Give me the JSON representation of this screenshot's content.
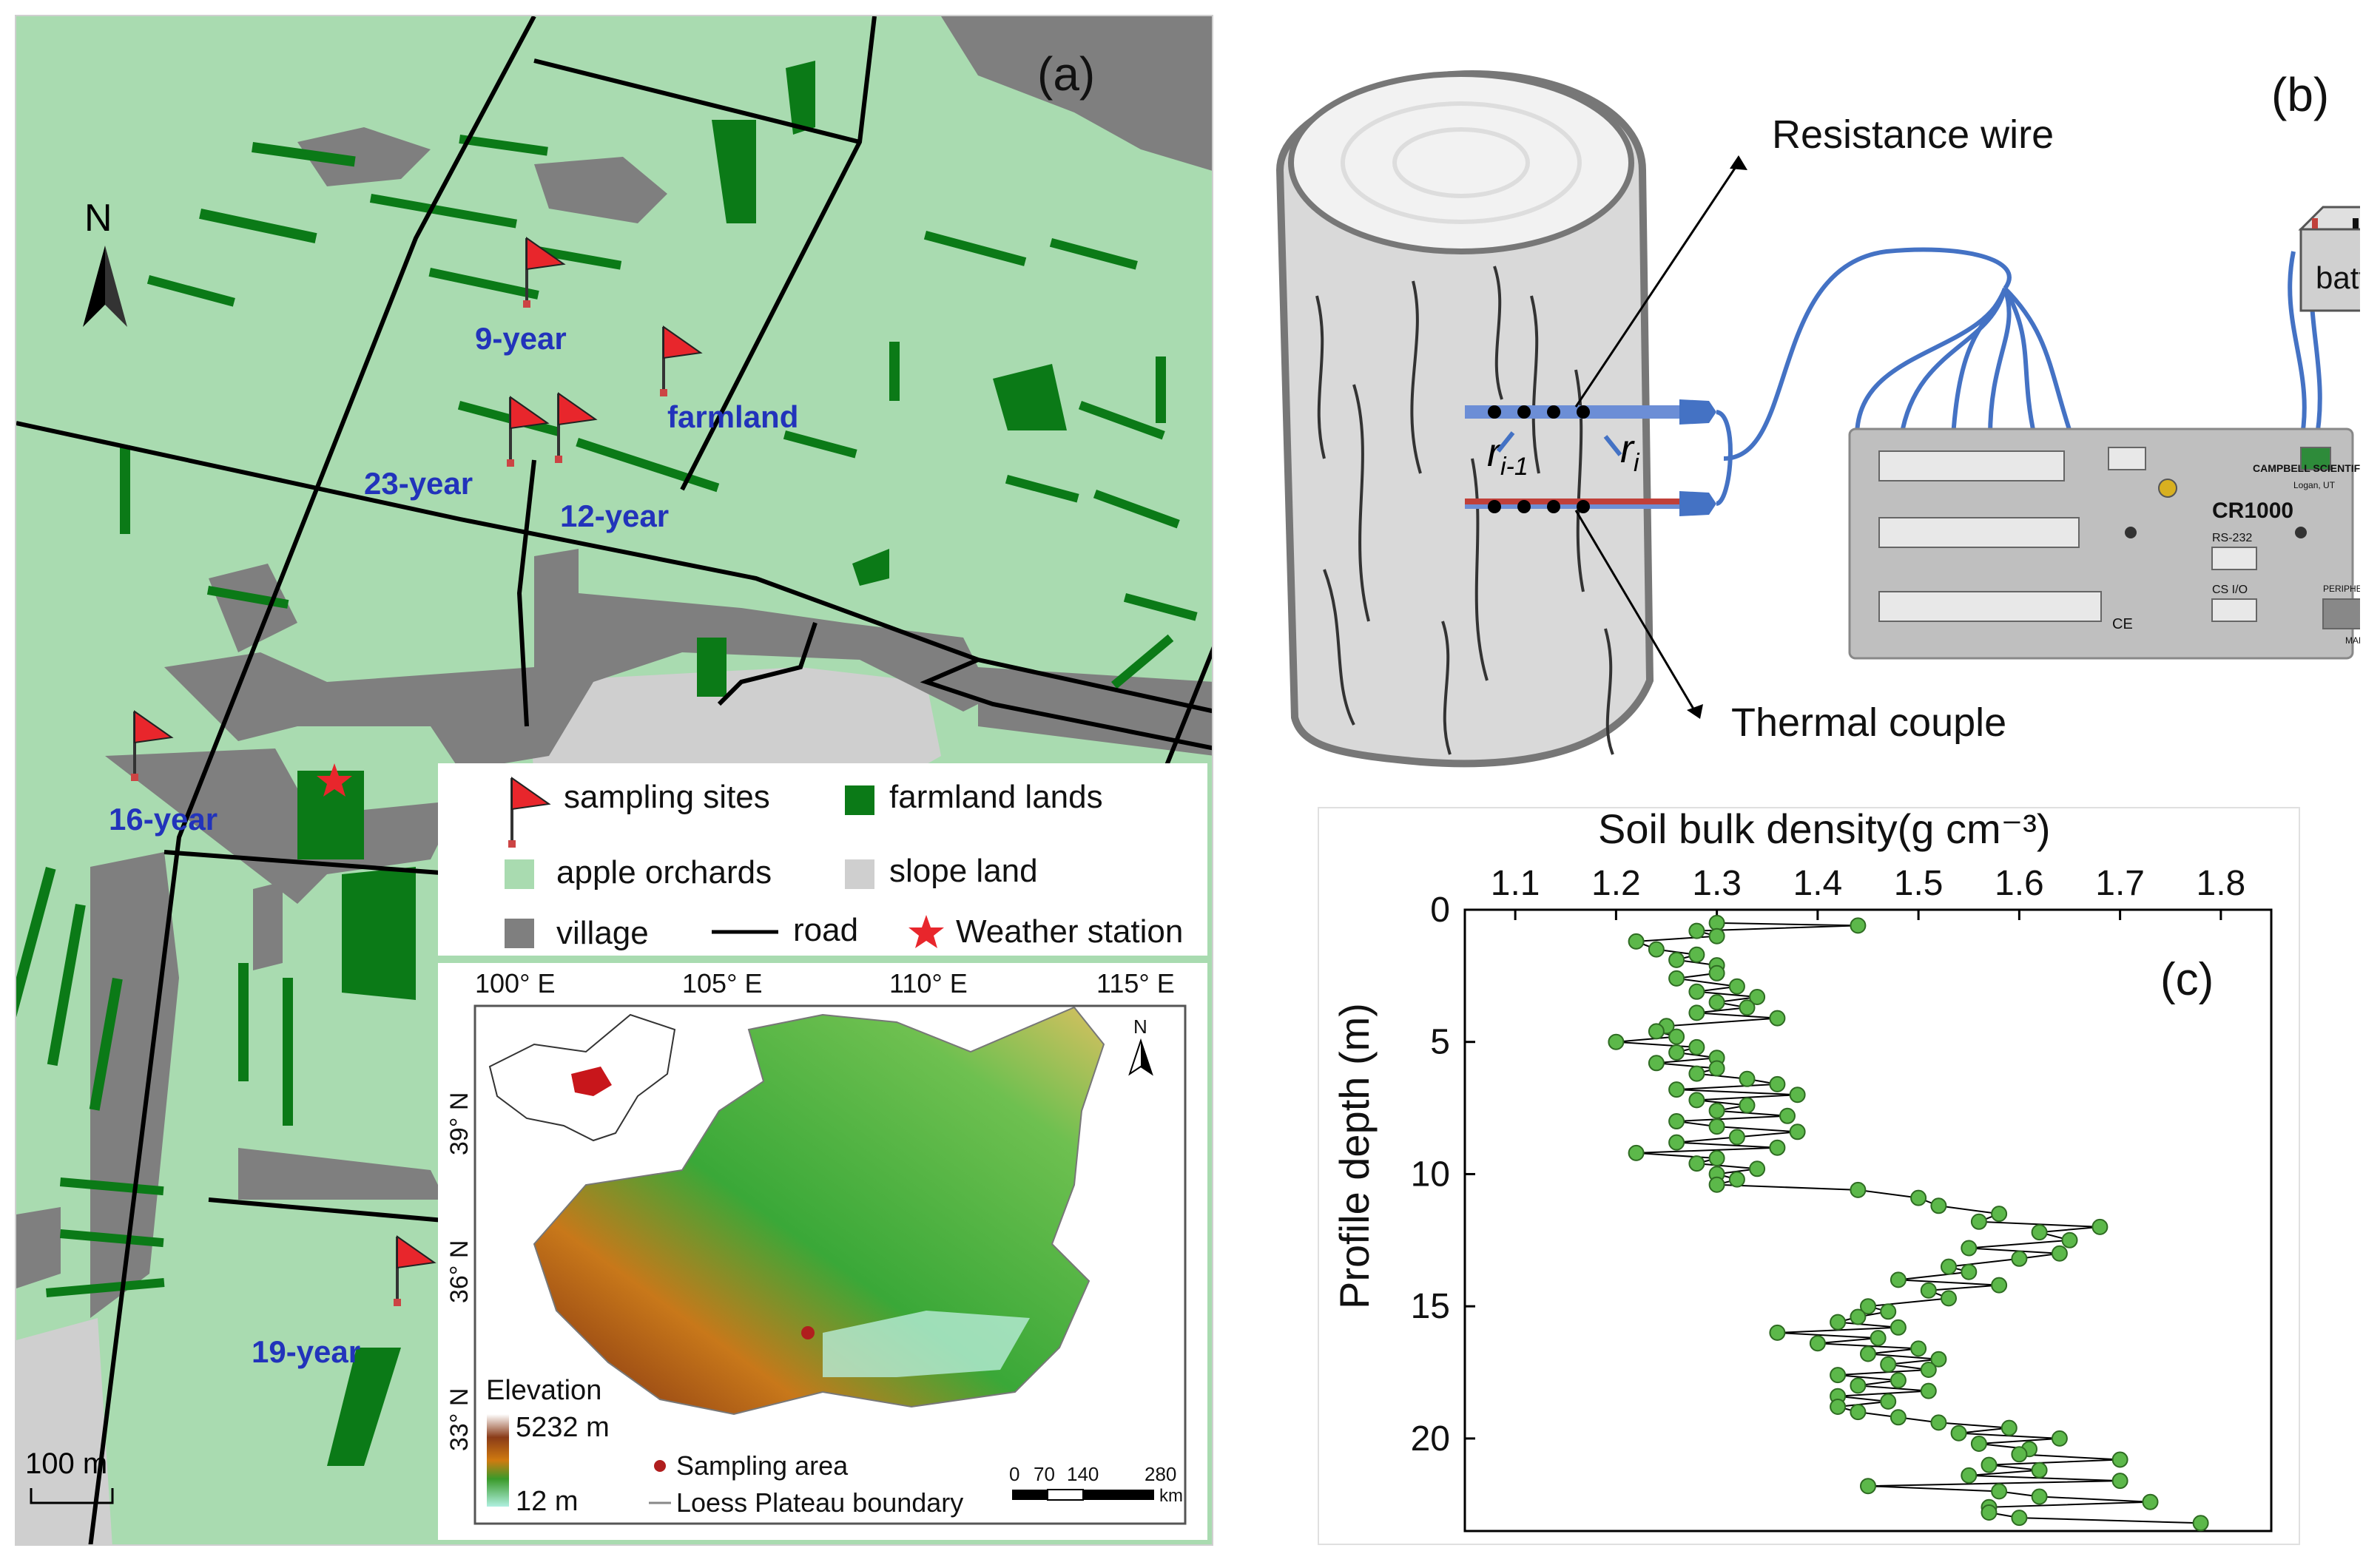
{
  "panel_a": {
    "label": "(a)",
    "north": "N",
    "sites": [
      {
        "name": "9-year"
      },
      {
        "name": "farmland"
      },
      {
        "name": "23-year"
      },
      {
        "name": "12-year"
      },
      {
        "name": "16-year"
      },
      {
        "name": "19-year"
      }
    ],
    "legend": {
      "sampling_sites": "sampling sites",
      "farmland_lands": "farmland lands",
      "apple_orchards": "apple orchards",
      "slope_land": "slope land",
      "village": "village",
      "road": "road",
      "weather_station": "Weather station"
    },
    "scale": "100 m",
    "colors": {
      "orchard": "#a9dbb0",
      "farmland": "#0b7a17",
      "village": "#7f7f7f",
      "slope": "#cfcfcf",
      "road": "#000000",
      "flag": "#e8262c",
      "site_label": "#2233bb"
    },
    "inset": {
      "lon_labels": [
        "100° E",
        "105° E",
        "110° E",
        "115° E"
      ],
      "lat_labels": [
        "39° N",
        "36° N",
        "33° N"
      ],
      "north": "N",
      "elevation_title": "Elevation",
      "elevation_max": "5232 m",
      "elevation_min": "12 m",
      "sampling_area": "Sampling area",
      "boundary": "Loess Plateau boundary",
      "scalebar_ticks": [
        "0",
        "70",
        "140",
        "280"
      ],
      "scalebar_unit": "km"
    }
  },
  "panel_b": {
    "label": "(b)",
    "resistance_wire": "Resistance wire",
    "thermal_couple": "Thermal couple",
    "battery": "battery",
    "logger_model": "CR1000",
    "logger_brand": "CAMPBELL SCIENTIFIC INC.",
    "logger_city": "Logan, UT",
    "port_rs232": "RS-232",
    "port_cs_io": "CS I/O",
    "port_peripheral": "PERIPHERAL PORT",
    "made_in": "MADE IN USA",
    "ce": "CE",
    "r_prev": "r",
    "r_prev_sub": "i-1",
    "r_curr": "r",
    "r_curr_sub": "i"
  },
  "chart_data": {
    "type": "scatter",
    "label": "(c)",
    "title": "",
    "xlabel": "Soil bulk density(g cm⁻³)",
    "ylabel": "Profile depth (m)",
    "xlim": [
      1.05,
      1.85
    ],
    "ylim": [
      0,
      23.5
    ],
    "y_inverted": true,
    "x_axis_position": "top",
    "x_ticks": [
      "1.1",
      "1.2",
      "1.3",
      "1.4",
      "1.5",
      "1.6",
      "1.7",
      "1.8"
    ],
    "y_ticks": [
      "0",
      "5",
      "10",
      "15",
      "20"
    ],
    "marker_color": "#5cb84a",
    "line_color": "#000000",
    "x": [
      1.3,
      1.44,
      1.28,
      1.3,
      1.22,
      1.24,
      1.28,
      1.26,
      1.3,
      1.3,
      1.26,
      1.32,
      1.28,
      1.34,
      1.3,
      1.33,
      1.28,
      1.36,
      1.25,
      1.24,
      1.26,
      1.2,
      1.28,
      1.26,
      1.3,
      1.24,
      1.3,
      1.28,
      1.33,
      1.36,
      1.26,
      1.38,
      1.28,
      1.33,
      1.3,
      1.37,
      1.26,
      1.3,
      1.38,
      1.32,
      1.26,
      1.36,
      1.22,
      1.3,
      1.28,
      1.34,
      1.3,
      1.32,
      1.3,
      1.44,
      1.5,
      1.52,
      1.58,
      1.56,
      1.68,
      1.62,
      1.65,
      1.55,
      1.64,
      1.6,
      1.53,
      1.55,
      1.48,
      1.58,
      1.51,
      1.53,
      1.45,
      1.47,
      1.44,
      1.42,
      1.48,
      1.36,
      1.46,
      1.4,
      1.5,
      1.45,
      1.52,
      1.47,
      1.51,
      1.42,
      1.48,
      1.44,
      1.51,
      1.42,
      1.47,
      1.42,
      1.44,
      1.48,
      1.52,
      1.59,
      1.54,
      1.64,
      1.56,
      1.61,
      1.6,
      1.7,
      1.57,
      1.62,
      1.55,
      1.7,
      1.45,
      1.58,
      1.62,
      1.73,
      1.57,
      1.57,
      1.6,
      1.78
    ],
    "y": [
      0.5,
      0.6,
      0.8,
      1.0,
      1.2,
      1.5,
      1.7,
      1.9,
      2.1,
      2.4,
      2.6,
      2.9,
      3.1,
      3.3,
      3.5,
      3.7,
      3.9,
      4.1,
      4.4,
      4.6,
      4.8,
      5.0,
      5.2,
      5.4,
      5.6,
      5.8,
      6.0,
      6.2,
      6.4,
      6.6,
      6.8,
      7.0,
      7.2,
      7.4,
      7.6,
      7.8,
      8.0,
      8.2,
      8.4,
      8.6,
      8.8,
      9.0,
      9.2,
      9.4,
      9.6,
      9.8,
      10.0,
      10.2,
      10.4,
      10.6,
      10.9,
      11.2,
      11.5,
      11.8,
      12.0,
      12.2,
      12.5,
      12.8,
      13.0,
      13.2,
      13.5,
      13.7,
      14.0,
      14.2,
      14.4,
      14.7,
      15.0,
      15.2,
      15.4,
      15.6,
      15.8,
      16.0,
      16.2,
      16.4,
      16.6,
      16.8,
      17.0,
      17.2,
      17.4,
      17.6,
      17.8,
      18.0,
      18.2,
      18.4,
      18.6,
      18.8,
      19.0,
      19.2,
      19.4,
      19.6,
      19.8,
      20.0,
      20.2,
      20.4,
      20.6,
      20.8,
      21.0,
      21.2,
      21.4,
      21.6,
      21.8,
      22.0,
      22.2,
      22.4,
      22.6,
      22.8,
      23.0,
      23.2
    ]
  }
}
